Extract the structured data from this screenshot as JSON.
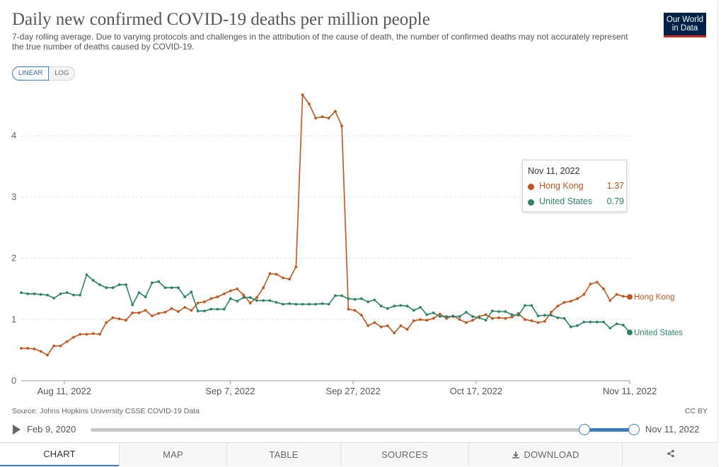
{
  "header": {
    "title": "Daily new confirmed COVID-19 deaths per million people",
    "subtitle": "7-day rolling average. Due to varying protocols and challenges in the attribution of the cause of death, the number of confirmed deaths may not accurately represent the true number of deaths caused by COVID-19.",
    "logo_line1": "Our World",
    "logo_line2": "in Data"
  },
  "scale_toggle": {
    "linear_label": "LINEAR",
    "log_label": "LOG",
    "selected": "LINEAR"
  },
  "tooltip": {
    "date": "Nov 11, 2022",
    "rows": [
      {
        "name": "Hong Kong",
        "value": "1.37",
        "color": "#c0561e"
      },
      {
        "name": "United States",
        "value": "0.79",
        "color": "#2c8465"
      }
    ]
  },
  "footer": {
    "source": "Source: Johns Hopkins University CSSE COVID-19 Data",
    "license": "CC BY"
  },
  "timeline": {
    "start_label": "Feb 9, 2020",
    "end_label": "Nov 11, 2022",
    "play_icon": "play-icon"
  },
  "tabs": [
    {
      "label": "CHART",
      "active": true
    },
    {
      "label": "MAP",
      "active": false
    },
    {
      "label": "TABLE",
      "active": false
    },
    {
      "label": "SOURCES",
      "active": false
    },
    {
      "label": "DOWNLOAD",
      "active": false,
      "icon": "download-icon"
    },
    {
      "label": "",
      "active": false,
      "icon": "share-icon"
    }
  ],
  "chart_data": {
    "type": "line",
    "title": "Daily new confirmed COVID-19 deaths per million people",
    "x_start": "2022-08-04",
    "x_end": "2022-11-11",
    "x_tick_labels": [
      "Aug 11, 2022",
      "Sep 7, 2022",
      "Sep 27, 2022",
      "Oct 17, 2022",
      "Nov 11, 2022"
    ],
    "x_tick_dates": [
      "2022-08-11",
      "2022-09-07",
      "2022-09-27",
      "2022-10-17",
      "2022-11-11"
    ],
    "y_ticks": [
      0,
      1,
      2,
      3,
      4
    ],
    "ylim": [
      0,
      4.7
    ],
    "grid": "horizontal dashed",
    "series": [
      {
        "name": "Hong Kong",
        "color": "#c0561e",
        "end_label": "Hong Kong",
        "values": [
          0.53,
          0.53,
          0.52,
          0.48,
          0.42,
          0.57,
          0.57,
          0.64,
          0.71,
          0.76,
          0.76,
          0.77,
          0.76,
          0.95,
          1.03,
          1.01,
          0.99,
          1.11,
          1.11,
          1.15,
          1.06,
          1.1,
          1.12,
          1.18,
          1.13,
          1.2,
          1.15,
          1.27,
          1.29,
          1.34,
          1.37,
          1.42,
          1.47,
          1.5,
          1.4,
          1.27,
          1.36,
          1.52,
          1.75,
          1.74,
          1.68,
          1.66,
          1.86,
          4.67,
          4.52,
          4.29,
          4.31,
          4.29,
          4.4,
          4.16,
          1.17,
          1.15,
          1.07,
          0.9,
          0.95,
          0.88,
          0.9,
          0.78,
          0.9,
          0.84,
          0.98,
          1.0,
          0.99,
          1.02,
          1.09,
          1.02,
          1.06,
          1.0,
          0.95,
          0.99,
          1.05,
          1.08,
          1.02,
          1.03,
          1.02,
          1.04,
          1.1,
          1.0,
          0.98,
          0.95,
          0.97,
          1.12,
          1.22,
          1.28,
          1.3,
          1.34,
          1.41,
          1.58,
          1.61,
          1.5,
          1.31,
          1.41,
          1.38,
          1.37
        ]
      },
      {
        "name": "United States",
        "color": "#2c8465",
        "end_label": "United States",
        "values": [
          1.44,
          1.42,
          1.42,
          1.41,
          1.4,
          1.35,
          1.42,
          1.44,
          1.4,
          1.4,
          1.73,
          1.64,
          1.57,
          1.52,
          1.52,
          1.57,
          1.57,
          1.24,
          1.44,
          1.37,
          1.6,
          1.62,
          1.52,
          1.52,
          1.52,
          1.37,
          1.45,
          1.14,
          1.14,
          1.17,
          1.17,
          1.17,
          1.34,
          1.3,
          1.36,
          1.36,
          1.31,
          1.31,
          1.31,
          1.28,
          1.25,
          1.26,
          1.25,
          1.25,
          1.25,
          1.25,
          1.26,
          1.25,
          1.39,
          1.39,
          1.34,
          1.33,
          1.34,
          1.29,
          1.32,
          1.22,
          1.18,
          1.22,
          1.23,
          1.22,
          1.15,
          1.2,
          1.08,
          1.11,
          1.05,
          1.05,
          1.05,
          1.05,
          1.12,
          1.05,
          1.03,
          0.99,
          1.14,
          1.13,
          1.13,
          1.08,
          1.07,
          1.23,
          1.23,
          1.06,
          1.07,
          1.07,
          1.03,
          1.02,
          0.88,
          0.9,
          0.96,
          0.96,
          0.96,
          0.96,
          0.86,
          0.93,
          0.91,
          0.79
        ]
      }
    ]
  }
}
